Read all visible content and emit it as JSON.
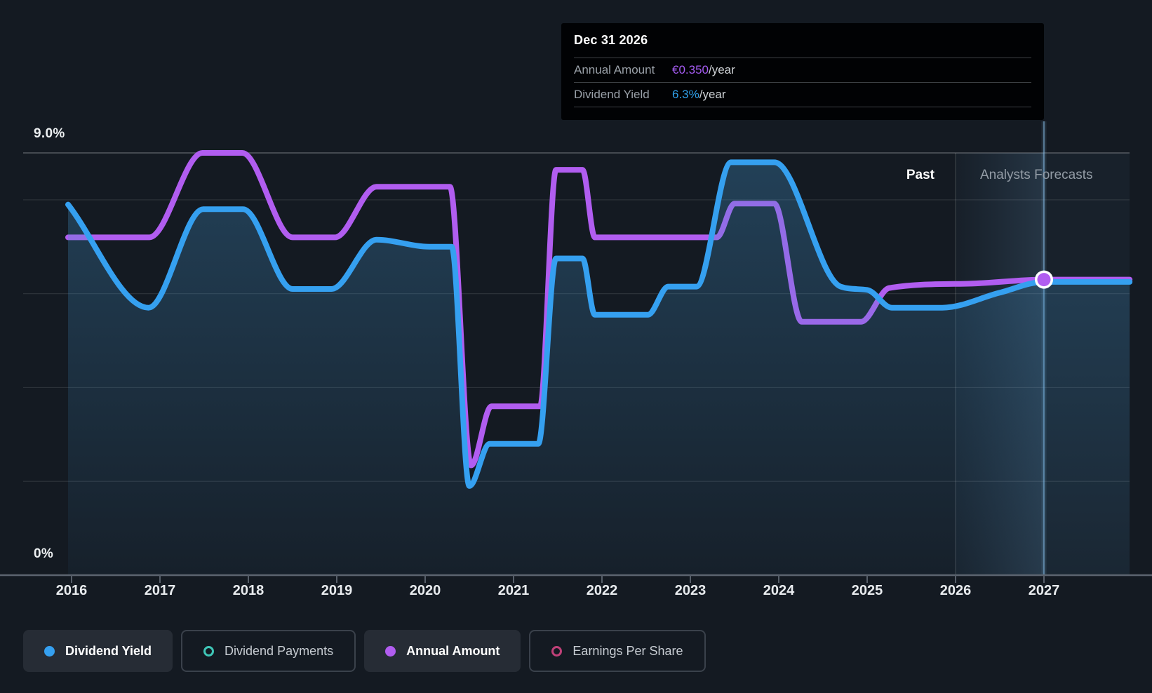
{
  "colors": {
    "background": "#141a22",
    "dividend_yield": "#35a0f0",
    "annual_amount": "#b15df0",
    "dividend_payments": "#3fc6b7",
    "earnings_per_share": "#bf4078",
    "tooltip_amount_value": "#a55cf3",
    "tooltip_yield_value": "#2f9fe8",
    "area_fill": "#4294cc",
    "axis_line": "#5c646f",
    "grid_major": "rgba(255,255,255,0.28)",
    "grid_minor": "rgba(255,255,255,0.10)"
  },
  "tooltip": {
    "date": "Dec 31 2026",
    "rows": [
      {
        "label": "Annual Amount",
        "value": "€0.350",
        "suffix": "/year",
        "color_key": "tooltip_amount_value"
      },
      {
        "label": "Dividend Yield",
        "value": "6.3%",
        "suffix": "/year",
        "color_key": "tooltip_yield_value"
      }
    ]
  },
  "regions": {
    "past_label": "Past",
    "forecast_label": "Analysts Forecasts"
  },
  "y_axis": {
    "top_label": "9.0%",
    "bottom_label": "0%"
  },
  "legend": {
    "items": [
      {
        "label": "Dividend Yield",
        "state": "active",
        "swatch": "filled",
        "color_key": "dividend_yield"
      },
      {
        "label": "Dividend Payments",
        "state": "inactive",
        "swatch": "outline",
        "color_key": "dividend_payments"
      },
      {
        "label": "Annual Amount",
        "state": "active",
        "swatch": "filled",
        "color_key": "annual_amount"
      },
      {
        "label": "Earnings Per Share",
        "state": "inactive",
        "swatch": "outline",
        "color_key": "earnings_per_share"
      }
    ]
  },
  "chart_data": {
    "type": "line",
    "title": "Dividend history and forecast",
    "x_range": [
      2015.96,
      2027.97
    ],
    "x_ticks": [
      2016,
      2017,
      2018,
      2019,
      2020,
      2021,
      2022,
      2023,
      2024,
      2025,
      2026,
      2027
    ],
    "y_axis": {
      "unit": "percent",
      "min": 0,
      "max": 9,
      "top_label": "9.0%",
      "bottom_label": "0%",
      "gridlines_percent": [
        8,
        6,
        4,
        2
      ]
    },
    "regions": {
      "past_label": "Past",
      "forecast_label": "Analysts Forecasts",
      "forecast_start_year": 2026
    },
    "cursor_year": 2027.0,
    "marker": {
      "series": "annual_amount",
      "year": 2027.0,
      "value_eur_per_year": 0.35,
      "equivalent_yield_percent": 6.3
    },
    "series": [
      {
        "name": "Dividend Yield",
        "key": "dividend_yield",
        "style": "line+area",
        "unit": "percent",
        "visible": true,
        "points": [
          [
            2015.96,
            7.9
          ],
          [
            2016.87,
            5.7
          ],
          [
            2017.49,
            7.8
          ],
          [
            2017.94,
            7.8
          ],
          [
            2018.5,
            6.1
          ],
          [
            2018.94,
            6.1
          ],
          [
            2019.45,
            7.15
          ],
          [
            2020.05,
            7.0
          ],
          [
            2020.3,
            7.0
          ],
          [
            2020.5,
            1.9
          ],
          [
            2020.73,
            2.8
          ],
          [
            2021.28,
            2.8
          ],
          [
            2021.48,
            6.75
          ],
          [
            2021.78,
            6.75
          ],
          [
            2021.92,
            5.55
          ],
          [
            2022.52,
            5.55
          ],
          [
            2022.75,
            6.15
          ],
          [
            2023.07,
            6.15
          ],
          [
            2023.46,
            8.8
          ],
          [
            2023.95,
            8.8
          ],
          [
            2024.7,
            6.15
          ],
          [
            2025.0,
            6.08
          ],
          [
            2025.28,
            5.7
          ],
          [
            2025.85,
            5.7
          ],
          [
            2026.5,
            6.02
          ],
          [
            2027.0,
            6.25
          ],
          [
            2027.97,
            6.25
          ]
        ]
      },
      {
        "name": "Annual Amount",
        "key": "annual_amount",
        "style": "line",
        "unit": "eur_per_year",
        "visible": true,
        "percent_per_eur": 18,
        "points": [
          [
            2015.96,
            0.4
          ],
          [
            2016.88,
            0.4
          ],
          [
            2017.48,
            0.5
          ],
          [
            2017.93,
            0.5
          ],
          [
            2018.5,
            0.4
          ],
          [
            2018.98,
            0.4
          ],
          [
            2019.45,
            0.46
          ],
          [
            2020.28,
            0.46
          ],
          [
            2020.52,
            0.13
          ],
          [
            2020.75,
            0.2
          ],
          [
            2021.3,
            0.2
          ],
          [
            2021.48,
            0.48
          ],
          [
            2021.78,
            0.48
          ],
          [
            2021.92,
            0.4
          ],
          [
            2023.3,
            0.4
          ],
          [
            2023.5,
            0.44
          ],
          [
            2023.95,
            0.44
          ],
          [
            2024.26,
            0.3
          ],
          [
            2024.93,
            0.3
          ],
          [
            2025.25,
            0.34
          ],
          [
            2026.1,
            0.345
          ],
          [
            2027.0,
            0.35
          ],
          [
            2027.97,
            0.35
          ]
        ]
      },
      {
        "name": "Dividend Payments",
        "key": "dividend_payments",
        "visible": false
      },
      {
        "name": "Earnings Per Share",
        "key": "earnings_per_share",
        "visible": false
      }
    ]
  }
}
